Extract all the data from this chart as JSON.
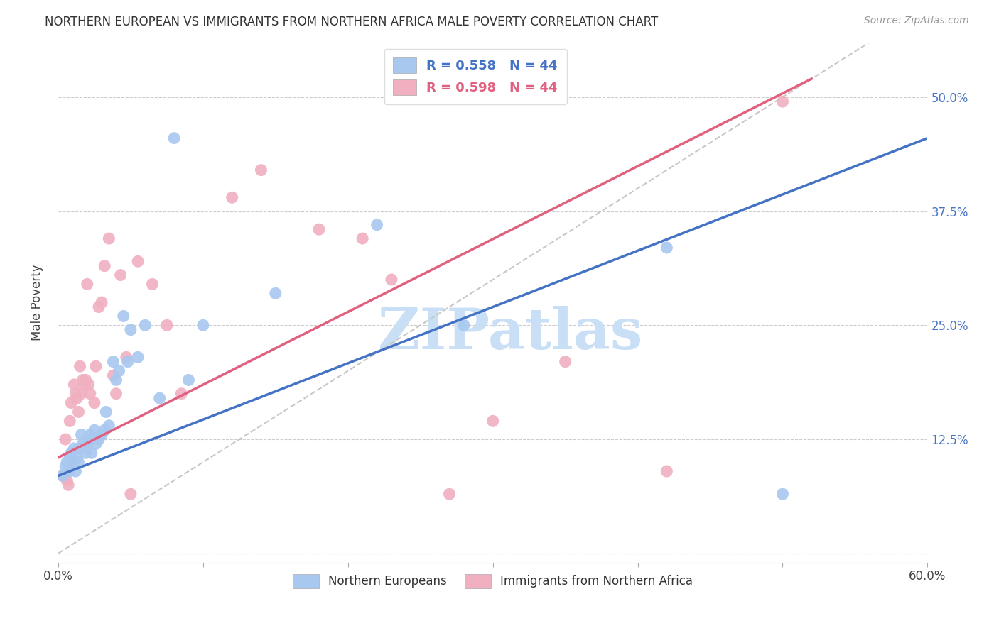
{
  "title": "NORTHERN EUROPEAN VS IMMIGRANTS FROM NORTHERN AFRICA MALE POVERTY CORRELATION CHART",
  "source": "Source: ZipAtlas.com",
  "ylabel": "Male Poverty",
  "xlim": [
    0.0,
    0.6
  ],
  "ylim": [
    -0.01,
    0.56
  ],
  "xticks": [
    0.0,
    0.1,
    0.2,
    0.3,
    0.4,
    0.5,
    0.6
  ],
  "xticklabels": [
    "0.0%",
    "",
    "",
    "",
    "",
    "",
    "60.0%"
  ],
  "yticks": [
    0.0,
    0.125,
    0.25,
    0.375,
    0.5
  ],
  "yticklabels": [
    "",
    "12.5%",
    "25.0%",
    "37.5%",
    "50.0%"
  ],
  "blue_R": "R = 0.558",
  "blue_N": "N = 44",
  "pink_R": "R = 0.598",
  "pink_N": "N = 44",
  "blue_color": "#a8c8f0",
  "pink_color": "#f0b0c0",
  "blue_line_color": "#4472c4",
  "pink_line_color": "#e06080",
  "dashed_line_color": "#c8c8c8",
  "watermark": "ZIPatlas",
  "watermark_color": "#c8dff5",
  "legend_label_blue": "Northern Europeans",
  "legend_label_pink": "Immigrants from Northern Africa",
  "blue_scatter_x": [
    0.003,
    0.005,
    0.006,
    0.007,
    0.008,
    0.009,
    0.01,
    0.011,
    0.012,
    0.013,
    0.014,
    0.015,
    0.016,
    0.017,
    0.018,
    0.019,
    0.02,
    0.021,
    0.022,
    0.023,
    0.025,
    0.026,
    0.028,
    0.03,
    0.032,
    0.033,
    0.035,
    0.038,
    0.04,
    0.042,
    0.045,
    0.048,
    0.05,
    0.055,
    0.06,
    0.07,
    0.08,
    0.09,
    0.1,
    0.15,
    0.22,
    0.28,
    0.42,
    0.5
  ],
  "blue_scatter_y": [
    0.085,
    0.095,
    0.1,
    0.09,
    0.105,
    0.11,
    0.1,
    0.115,
    0.09,
    0.105,
    0.1,
    0.115,
    0.13,
    0.12,
    0.115,
    0.11,
    0.125,
    0.12,
    0.13,
    0.11,
    0.135,
    0.12,
    0.125,
    0.13,
    0.135,
    0.155,
    0.14,
    0.21,
    0.19,
    0.2,
    0.26,
    0.21,
    0.245,
    0.215,
    0.25,
    0.17,
    0.455,
    0.19,
    0.25,
    0.285,
    0.36,
    0.25,
    0.335,
    0.065
  ],
  "pink_scatter_x": [
    0.003,
    0.005,
    0.006,
    0.007,
    0.008,
    0.009,
    0.01,
    0.011,
    0.012,
    0.013,
    0.014,
    0.015,
    0.016,
    0.017,
    0.018,
    0.019,
    0.02,
    0.021,
    0.022,
    0.025,
    0.026,
    0.028,
    0.03,
    0.032,
    0.035,
    0.038,
    0.04,
    0.043,
    0.047,
    0.05,
    0.055,
    0.065,
    0.075,
    0.085,
    0.12,
    0.14,
    0.18,
    0.21,
    0.23,
    0.27,
    0.3,
    0.35,
    0.42,
    0.5
  ],
  "pink_scatter_y": [
    0.085,
    0.125,
    0.08,
    0.075,
    0.145,
    0.165,
    0.1,
    0.185,
    0.175,
    0.17,
    0.155,
    0.205,
    0.175,
    0.19,
    0.185,
    0.19,
    0.295,
    0.185,
    0.175,
    0.165,
    0.205,
    0.27,
    0.275,
    0.315,
    0.345,
    0.195,
    0.175,
    0.305,
    0.215,
    0.065,
    0.32,
    0.295,
    0.25,
    0.175,
    0.39,
    0.42,
    0.355,
    0.345,
    0.3,
    0.065,
    0.145,
    0.21,
    0.09,
    0.495
  ],
  "blue_trend_x": [
    0.0,
    0.6
  ],
  "blue_trend_y": [
    0.085,
    0.455
  ],
  "pink_trend_x": [
    0.0,
    0.52
  ],
  "pink_trend_y": [
    0.105,
    0.52
  ],
  "diag_line_x": [
    0.0,
    0.56
  ],
  "diag_line_y": [
    0.0,
    0.56
  ]
}
